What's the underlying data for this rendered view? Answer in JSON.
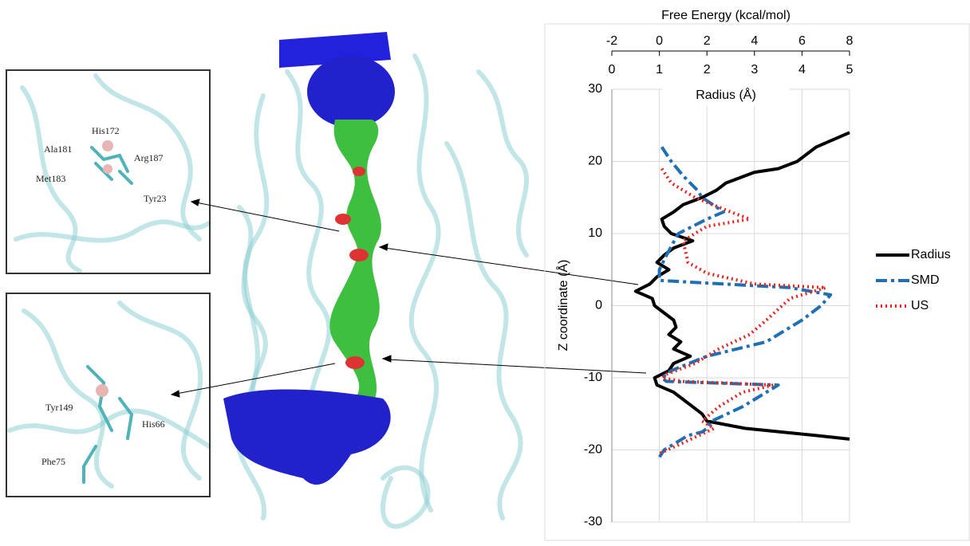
{
  "figure": {
    "inset_labels": [
      "His172",
      "Ala181",
      "Arg187",
      "Met183",
      "Tyr23",
      "Tyr149",
      "His66",
      "Phe75"
    ]
  },
  "chart_data": {
    "type": "line",
    "xlabel": "Free Energy (kcal/mol)",
    "x2label": "Radius (Å)",
    "ylabel": "Z coordinate (Å)",
    "xlim": [
      -2,
      8
    ],
    "xticks": [
      -2,
      0,
      2,
      4,
      6,
      8
    ],
    "x2lim": [
      0,
      5
    ],
    "x2ticks": [
      0,
      1,
      2,
      3,
      4,
      5
    ],
    "ylim": [
      -30,
      30
    ],
    "yticks": [
      -30,
      -20,
      -10,
      0,
      10,
      20,
      30
    ],
    "grid": true,
    "series": [
      {
        "name": "Radius",
        "color": "#000000",
        "dash": "solid",
        "axis": "x2",
        "y": [
          24,
          22,
          20,
          19,
          18.5,
          17,
          16,
          15,
          14,
          13,
          12,
          11,
          10,
          9,
          8,
          7,
          6,
          5,
          4,
          3,
          2,
          1,
          0,
          -1,
          -2,
          -3,
          -4,
          -5,
          -6,
          -7,
          -8,
          -9,
          -10,
          -11,
          -12,
          -13,
          -14,
          -15,
          -16,
          -17,
          -18,
          -18.5
        ],
        "values": [
          5.0,
          4.3,
          3.9,
          3.5,
          3.0,
          2.4,
          2.2,
          1.9,
          1.5,
          1.3,
          1.05,
          1.1,
          1.25,
          1.7,
          1.3,
          1.1,
          0.95,
          1.2,
          0.95,
          0.8,
          0.5,
          0.85,
          0.9,
          1.1,
          1.3,
          1.35,
          1.2,
          1.45,
          1.3,
          1.65,
          1.3,
          1.2,
          0.9,
          0.95,
          1.3,
          1.5,
          1.7,
          1.9,
          2.0,
          2.8,
          4.3,
          5.0
        ]
      },
      {
        "name": "SMD",
        "color": "#1f6fb5",
        "dash": "dashdot",
        "axis": "x",
        "y": [
          22,
          20,
          18,
          16,
          15,
          13,
          12,
          10,
          7,
          5,
          3.5,
          2.5,
          1.5,
          0,
          -2,
          -5,
          -7,
          -9,
          -10,
          -10.5,
          -11,
          -12,
          -14,
          -16,
          -17,
          -17.5,
          -18,
          -20,
          -21
        ],
        "values": [
          0.1,
          0.5,
          1.0,
          1.6,
          1.8,
          2.7,
          2.0,
          0.8,
          0.3,
          0.0,
          0.0,
          5.5,
          7.2,
          6.8,
          6.0,
          4.5,
          2.0,
          0.5,
          0.1,
          0.3,
          5.0,
          4.5,
          3.5,
          2.2,
          2.0,
          1.8,
          1.2,
          0.2,
          0.0
        ]
      },
      {
        "name": "US",
        "color": "#e8231e",
        "dash": "dotted",
        "axis": "x",
        "y": [
          19,
          17,
          15,
          13,
          12,
          11,
          9,
          6,
          4.5,
          3,
          2.5,
          1,
          -2,
          -4,
          -6,
          -8,
          -9.5,
          -10,
          -10.5,
          -11,
          -12,
          -14,
          -16,
          -17,
          -19,
          -20.5
        ],
        "values": [
          0.1,
          0.5,
          1.5,
          3.0,
          3.8,
          2.0,
          1.0,
          1.2,
          2.0,
          4.0,
          7.0,
          5.5,
          4.5,
          3.8,
          2.5,
          1.5,
          0.3,
          0.1,
          1.0,
          4.8,
          3.5,
          2.5,
          1.8,
          2.3,
          1.0,
          0.0
        ]
      }
    ]
  }
}
